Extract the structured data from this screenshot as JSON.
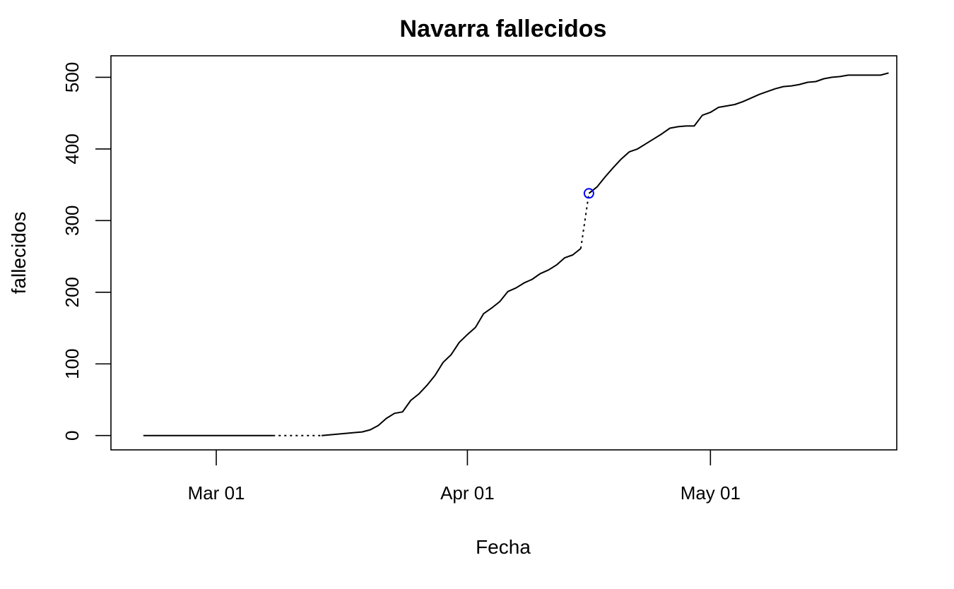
{
  "chart_data": {
    "type": "line",
    "title": "Navarra fallecidos",
    "xlabel": "Fecha",
    "ylabel": "fallecidos",
    "xlim": [
      "2020-02-17",
      "2020-05-24"
    ],
    "ylim": [
      -20,
      530
    ],
    "x_ticks": [
      {
        "date": "2020-03-01",
        "label": "Mar 01"
      },
      {
        "date": "2020-04-01",
        "label": "Apr 01"
      },
      {
        "date": "2020-05-01",
        "label": "May 01"
      }
    ],
    "y_ticks": [
      {
        "value": 0,
        "label": "0"
      },
      {
        "value": 100,
        "label": "100"
      },
      {
        "value": 200,
        "label": "200"
      },
      {
        "value": 300,
        "label": "300"
      },
      {
        "value": 400,
        "label": "400"
      },
      {
        "value": 500,
        "label": "500"
      }
    ],
    "grid": false,
    "series": [
      {
        "values": [
          {
            "x": "2020-02-21",
            "y": 0
          },
          {
            "x": "2020-03-08",
            "y": 0
          },
          {
            "x": "2020-03-14",
            "y": 0,
            "gap_before": true
          },
          {
            "x": "2020-03-19",
            "y": 5
          },
          {
            "x": "2020-03-20",
            "y": 8
          },
          {
            "x": "2020-03-21",
            "y": 14
          },
          {
            "x": "2020-03-22",
            "y": 24
          },
          {
            "x": "2020-03-23",
            "y": 31
          },
          {
            "x": "2020-03-24",
            "y": 33
          },
          {
            "x": "2020-03-25",
            "y": 49
          },
          {
            "x": "2020-03-26",
            "y": 58
          },
          {
            "x": "2020-03-27",
            "y": 70
          },
          {
            "x": "2020-03-28",
            "y": 84
          },
          {
            "x": "2020-03-29",
            "y": 102
          },
          {
            "x": "2020-03-30",
            "y": 113
          },
          {
            "x": "2020-03-31",
            "y": 130
          },
          {
            "x": "2020-04-01",
            "y": 141
          },
          {
            "x": "2020-04-02",
            "y": 151
          },
          {
            "x": "2020-04-03",
            "y": 170
          },
          {
            "x": "2020-04-04",
            "y": 178
          },
          {
            "x": "2020-04-05",
            "y": 187
          },
          {
            "x": "2020-04-06",
            "y": 201
          },
          {
            "x": "2020-04-07",
            "y": 206
          },
          {
            "x": "2020-04-08",
            "y": 213
          },
          {
            "x": "2020-04-09",
            "y": 218
          },
          {
            "x": "2020-04-10",
            "y": 226
          },
          {
            "x": "2020-04-11",
            "y": 231
          },
          {
            "x": "2020-04-12",
            "y": 238
          },
          {
            "x": "2020-04-13",
            "y": 248
          },
          {
            "x": "2020-04-14",
            "y": 252
          },
          {
            "x": "2020-04-15",
            "y": 261
          },
          {
            "x": "2020-04-16",
            "y": 338,
            "gap_before": true
          },
          {
            "x": "2020-04-17",
            "y": 347
          },
          {
            "x": "2020-04-18",
            "y": 361
          },
          {
            "x": "2020-04-19",
            "y": 374
          },
          {
            "x": "2020-04-20",
            "y": 386
          },
          {
            "x": "2020-04-21",
            "y": 396
          },
          {
            "x": "2020-04-22",
            "y": 400
          },
          {
            "x": "2020-04-23",
            "y": 407
          },
          {
            "x": "2020-04-24",
            "y": 414
          },
          {
            "x": "2020-04-25",
            "y": 421
          },
          {
            "x": "2020-04-26",
            "y": 429
          },
          {
            "x": "2020-04-27",
            "y": 431
          },
          {
            "x": "2020-04-28",
            "y": 432
          },
          {
            "x": "2020-04-29",
            "y": 432
          },
          {
            "x": "2020-04-30",
            "y": 447
          },
          {
            "x": "2020-05-01",
            "y": 451
          },
          {
            "x": "2020-05-02",
            "y": 458
          },
          {
            "x": "2020-05-03",
            "y": 460
          },
          {
            "x": "2020-05-04",
            "y": 462
          },
          {
            "x": "2020-05-05",
            "y": 466
          },
          {
            "x": "2020-05-06",
            "y": 471
          },
          {
            "x": "2020-05-07",
            "y": 476
          },
          {
            "x": "2020-05-08",
            "y": 480
          },
          {
            "x": "2020-05-09",
            "y": 484
          },
          {
            "x": "2020-05-10",
            "y": 487
          },
          {
            "x": "2020-05-11",
            "y": 488
          },
          {
            "x": "2020-05-12",
            "y": 490
          },
          {
            "x": "2020-05-13",
            "y": 493
          },
          {
            "x": "2020-05-14",
            "y": 494
          },
          {
            "x": "2020-05-15",
            "y": 498
          },
          {
            "x": "2020-05-16",
            "y": 500
          },
          {
            "x": "2020-05-17",
            "y": 501
          },
          {
            "x": "2020-05-18",
            "y": 503
          },
          {
            "x": "2020-05-22",
            "y": 503
          },
          {
            "x": "2020-05-23",
            "y": 506
          }
        ]
      }
    ],
    "highlighted_point": {
      "x": "2020-04-16",
      "y": 338,
      "color": "#0000ff",
      "marker": "open-circle"
    },
    "colors": {
      "line": "#000000",
      "highlight": "#0000ff",
      "frame": "#000000"
    }
  }
}
